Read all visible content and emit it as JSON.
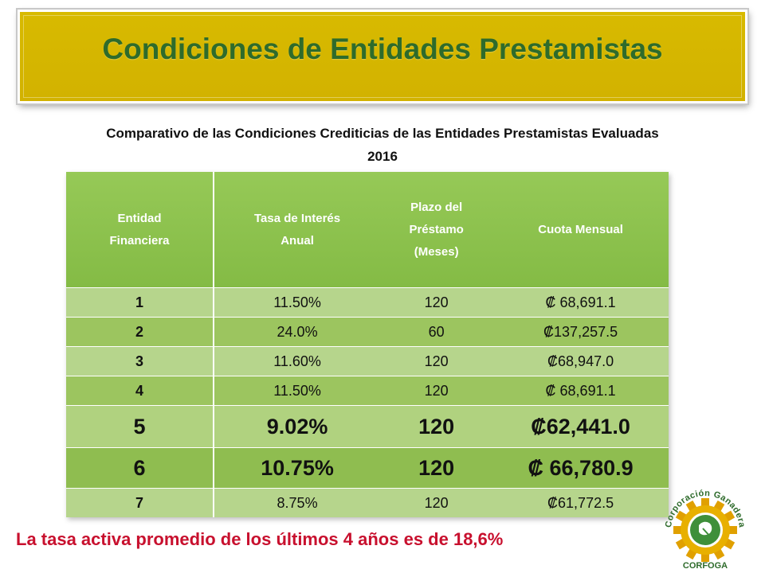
{
  "header": {
    "title": "Condiciones de Entidades Prestamistas"
  },
  "subtitle": {
    "line1": "Comparativo de las Condiciones Crediticias de las Entidades Prestamistas Evaluadas",
    "line2": "2016"
  },
  "table": {
    "headers": {
      "entidad": [
        "Entidad",
        "Financiera"
      ],
      "tasa": [
        "Tasa de Interés",
        "Anual"
      ],
      "plazo": [
        "Plazo del",
        "Préstamo",
        "(Meses)"
      ],
      "cuota": "Cuota Mensual"
    },
    "rows": [
      {
        "entidad": "1",
        "tasa": "11.50%",
        "plazo": "120",
        "cuota": "₡ 68,691.1"
      },
      {
        "entidad": "2",
        "tasa": "24.0%",
        "plazo": "60",
        "cuota": "₡137,257.5"
      },
      {
        "entidad": "3",
        "tasa": "11.60%",
        "plazo": "120",
        "cuota": "₡68,947.0"
      },
      {
        "entidad": "4",
        "tasa": "11.50%",
        "plazo": "120",
        "cuota": "₡ 68,691.1"
      },
      {
        "entidad": "5",
        "tasa": "9.02%",
        "plazo": "120",
        "cuota": "₡62,441.0"
      },
      {
        "entidad": "6",
        "tasa": "10.75%",
        "plazo": "120",
        "cuota": "₡ 66,780.9"
      },
      {
        "entidad": "7",
        "tasa": "8.75%",
        "plazo": "120",
        "cuota": "₡61,772.5"
      }
    ]
  },
  "footer_note": "La tasa activa promedio de los últimos 4 años es de 18,6%",
  "logo": {
    "icon": "corfoga-gear-logo-icon",
    "arc_text": "Corporación Ganadera",
    "bottom_text": "CORFOGA"
  },
  "colors": {
    "banner": "#d4b500",
    "title_text": "#2e6b2b",
    "table_header": "#8bc34a",
    "row_light": "#b6d58c",
    "row_dark": "#9cc55f",
    "footer_text": "#c8102e"
  }
}
